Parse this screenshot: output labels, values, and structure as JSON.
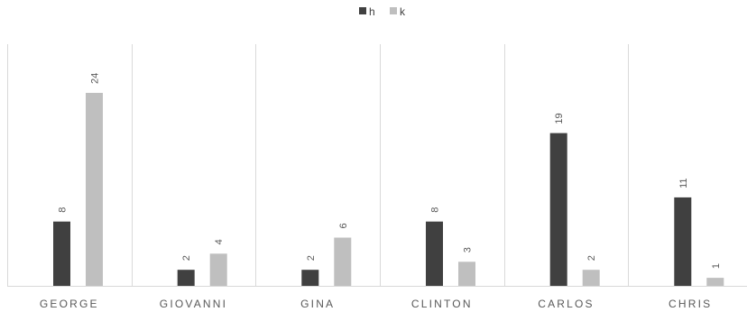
{
  "chart_data": {
    "type": "bar",
    "categories": [
      "GEORGE",
      "GIOVANNI",
      "GINA",
      "CLINTON",
      "CARLOS",
      "CHRIS"
    ],
    "series": [
      {
        "name": "h",
        "values": [
          8,
          2,
          2,
          8,
          19,
          11
        ],
        "color": "#404040"
      },
      {
        "name": "k",
        "values": [
          24,
          4,
          6,
          3,
          2,
          1
        ],
        "color": "#bfbfbf"
      }
    ],
    "ylim": [
      0,
      24
    ],
    "data_labels": true,
    "data_label_orientation": "vertical",
    "grid": false,
    "category_separators": true,
    "legend_position": "top-center"
  }
}
